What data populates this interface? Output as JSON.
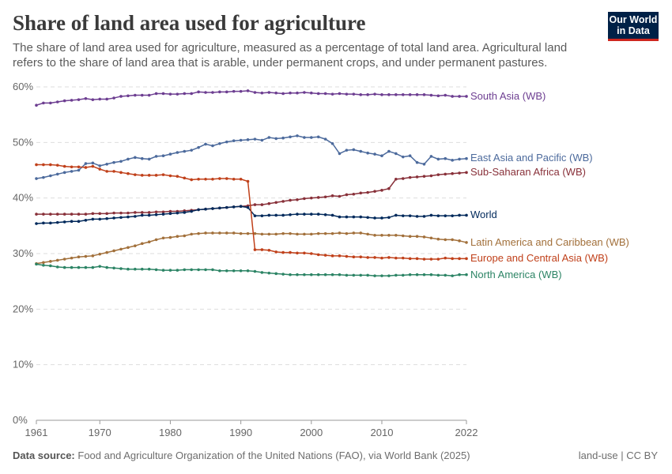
{
  "title": "Share of land area used for agriculture",
  "subtitle": "The share of land area used for agriculture, measured as a percentage of total land area. Agricultural land refers to the share of land area that is arable, under permanent crops, and under permanent pastures.",
  "logo": {
    "line1": "Our World",
    "line2": "in Data"
  },
  "footer": {
    "source_label": "Data source:",
    "source_text": "Food and Agriculture Organization of the United Nations (FAO), via World Bank (2025)",
    "right": "land-use | CC BY"
  },
  "chart_data": {
    "type": "line",
    "title": "Share of land area used for agriculture",
    "xlabel": "",
    "ylabel": "",
    "xlim": [
      1961,
      2022
    ],
    "ylim": [
      0,
      60
    ],
    "grid": "horizontal dashed",
    "legend": "right (inline labels at line ends)",
    "x_ticks": [
      "1961",
      "1970",
      "1980",
      "1990",
      "2000",
      "2010",
      "2022"
    ],
    "y_ticks": [
      "0%",
      "10%",
      "20%",
      "30%",
      "40%",
      "50%",
      "60%"
    ],
    "x_start": 1961,
    "series": [
      {
        "name": "South Asia (WB)",
        "color": "#6d3e91",
        "values": [
          56.7,
          57.1,
          57.1,
          57.3,
          57.5,
          57.6,
          57.7,
          57.9,
          57.7,
          57.8,
          57.8,
          58.0,
          58.3,
          58.4,
          58.5,
          58.5,
          58.5,
          58.8,
          58.8,
          58.7,
          58.7,
          58.8,
          58.8,
          59.1,
          59.0,
          59.0,
          59.1,
          59.1,
          59.2,
          59.2,
          59.3,
          59.0,
          58.9,
          59.0,
          58.9,
          58.8,
          58.9,
          58.9,
          59.0,
          58.9,
          58.8,
          58.8,
          58.7,
          58.8,
          58.7,
          58.7,
          58.6,
          58.6,
          58.7,
          58.6,
          58.6,
          58.6,
          58.6,
          58.6,
          58.6,
          58.6,
          58.5,
          58.4,
          58.5,
          58.3,
          58.3,
          58.3
        ]
      },
      {
        "name": "East Asia and Pacific (WB)",
        "color": "#4c6a9c",
        "values": [
          43.5,
          43.7,
          44.0,
          44.3,
          44.6,
          44.8,
          45.0,
          46.2,
          46.3,
          45.8,
          46.1,
          46.4,
          46.6,
          47.0,
          47.3,
          47.1,
          47.0,
          47.5,
          47.6,
          47.9,
          48.2,
          48.4,
          48.6,
          49.1,
          49.7,
          49.4,
          49.8,
          50.1,
          50.3,
          50.4,
          50.5,
          50.6,
          50.4,
          50.9,
          50.7,
          50.8,
          51.0,
          51.2,
          50.9,
          50.9,
          51.0,
          50.6,
          49.8,
          48.0,
          48.6,
          48.7,
          48.4,
          48.1,
          47.9,
          47.6,
          48.4,
          48.0,
          47.4,
          47.6,
          46.4,
          46.1,
          47.5,
          47.0,
          47.1,
          46.8,
          47.0,
          47.1
        ]
      },
      {
        "name": "Sub-Saharan Africa (WB)",
        "color": "#883039",
        "values": [
          37.1,
          37.1,
          37.1,
          37.1,
          37.1,
          37.1,
          37.1,
          37.1,
          37.2,
          37.2,
          37.2,
          37.3,
          37.3,
          37.3,
          37.4,
          37.4,
          37.4,
          37.5,
          37.5,
          37.6,
          37.6,
          37.7,
          37.8,
          37.9,
          38.0,
          38.1,
          38.2,
          38.3,
          38.4,
          38.5,
          38.6,
          38.8,
          38.8,
          39.0,
          39.2,
          39.4,
          39.6,
          39.7,
          39.9,
          40.0,
          40.1,
          40.2,
          40.4,
          40.3,
          40.6,
          40.7,
          40.9,
          41.0,
          41.2,
          41.4,
          41.7,
          43.4,
          43.5,
          43.7,
          43.8,
          43.9,
          44.0,
          44.2,
          44.3,
          44.4,
          44.5,
          44.6
        ]
      },
      {
        "name": "World",
        "color": "#00295b",
        "values": [
          35.4,
          35.5,
          35.5,
          35.6,
          35.7,
          35.8,
          35.8,
          36.0,
          36.2,
          36.2,
          36.3,
          36.4,
          36.5,
          36.6,
          36.7,
          36.9,
          36.9,
          37.0,
          37.1,
          37.2,
          37.3,
          37.4,
          37.6,
          37.9,
          38.0,
          38.1,
          38.2,
          38.3,
          38.4,
          38.5,
          38.3,
          36.8,
          36.8,
          36.9,
          36.9,
          36.9,
          37.0,
          37.1,
          37.1,
          37.1,
          37.1,
          37.0,
          36.9,
          36.6,
          36.6,
          36.6,
          36.6,
          36.5,
          36.4,
          36.4,
          36.5,
          36.9,
          36.8,
          36.8,
          36.7,
          36.7,
          36.9,
          36.8,
          36.8,
          36.8,
          36.9,
          36.9
        ]
      },
      {
        "name": "Latin America and Caribbean (WB)",
        "color": "#a2703b",
        "values": [
          28.2,
          28.4,
          28.6,
          28.8,
          29.0,
          29.2,
          29.4,
          29.5,
          29.6,
          29.9,
          30.2,
          30.5,
          30.8,
          31.1,
          31.4,
          31.8,
          32.1,
          32.5,
          32.8,
          32.9,
          33.1,
          33.2,
          33.5,
          33.6,
          33.7,
          33.7,
          33.7,
          33.7,
          33.7,
          33.6,
          33.6,
          33.6,
          33.5,
          33.5,
          33.5,
          33.6,
          33.6,
          33.5,
          33.5,
          33.5,
          33.6,
          33.6,
          33.6,
          33.7,
          33.6,
          33.7,
          33.7,
          33.5,
          33.3,
          33.3,
          33.3,
          33.3,
          33.2,
          33.1,
          33.1,
          33.0,
          32.8,
          32.6,
          32.5,
          32.5,
          32.3,
          32.0
        ]
      },
      {
        "name": "Europe and Central Asia (WB)",
        "color": "#c0401a",
        "values": [
          46.0,
          46.0,
          46.0,
          45.9,
          45.7,
          45.6,
          45.6,
          45.5,
          45.7,
          45.2,
          44.8,
          44.8,
          44.6,
          44.4,
          44.2,
          44.1,
          44.1,
          44.1,
          44.2,
          44.0,
          43.9,
          43.6,
          43.3,
          43.4,
          43.4,
          43.4,
          43.5,
          43.5,
          43.4,
          43.4,
          43.0,
          30.7,
          30.7,
          30.6,
          30.3,
          30.2,
          30.2,
          30.1,
          30.1,
          30.0,
          29.8,
          29.7,
          29.6,
          29.6,
          29.5,
          29.4,
          29.4,
          29.3,
          29.3,
          29.2,
          29.3,
          29.2,
          29.2,
          29.1,
          29.1,
          29.0,
          29.0,
          29.0,
          29.2,
          29.1,
          29.1,
          29.1
        ]
      },
      {
        "name": "North America (WB)",
        "color": "#2c8465",
        "values": [
          28.1,
          27.9,
          27.8,
          27.6,
          27.5,
          27.5,
          27.5,
          27.5,
          27.5,
          27.7,
          27.5,
          27.4,
          27.3,
          27.2,
          27.2,
          27.2,
          27.2,
          27.1,
          27.0,
          27.0,
          27.0,
          27.1,
          27.1,
          27.1,
          27.1,
          27.1,
          26.9,
          26.9,
          26.9,
          26.9,
          26.9,
          26.8,
          26.6,
          26.5,
          26.4,
          26.3,
          26.2,
          26.2,
          26.2,
          26.2,
          26.2,
          26.2,
          26.2,
          26.2,
          26.1,
          26.1,
          26.1,
          26.1,
          26.0,
          26.0,
          26.0,
          26.1,
          26.1,
          26.2,
          26.2,
          26.2,
          26.2,
          26.1,
          26.1,
          26.0,
          26.2,
          26.2
        ]
      }
    ]
  }
}
